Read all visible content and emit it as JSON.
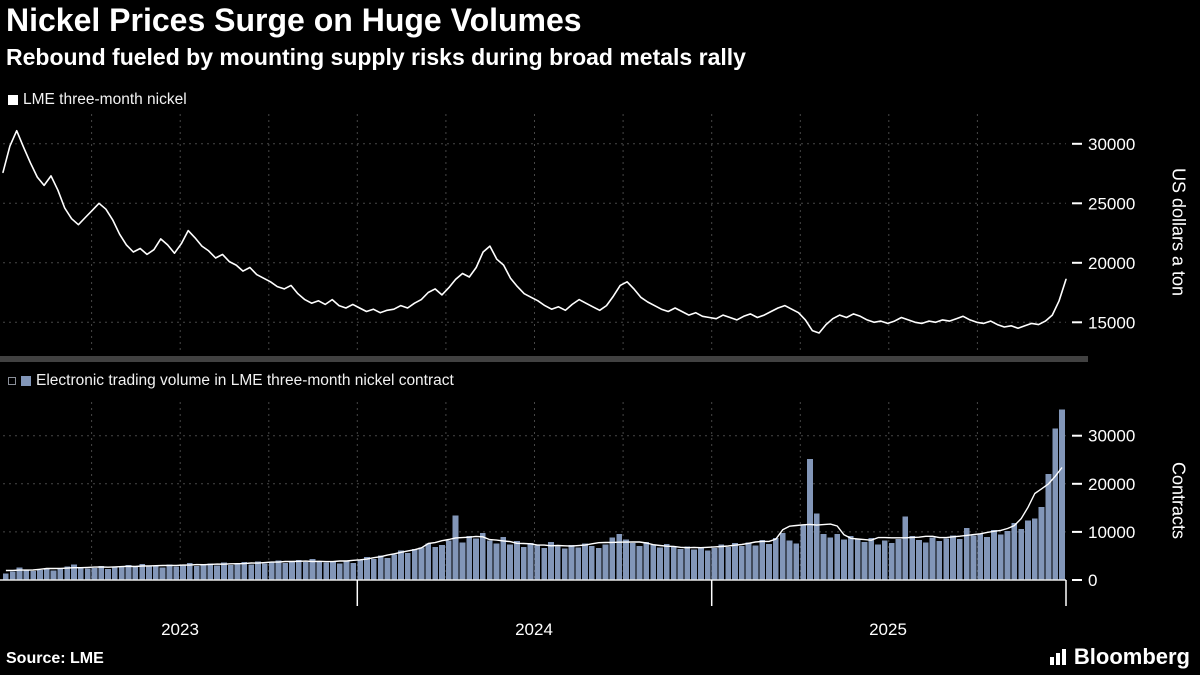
{
  "header": {
    "title": "Nickel Prices Surge on Huge Volumes",
    "subtitle": "Rebound fueled by mounting supply risks during broad metals rally"
  },
  "panels": {
    "price": {
      "legend": "LME three-month nickel",
      "axis_title": "US dollars a ton"
    },
    "volume": {
      "legend": "Electronic trading volume in LME three-month nickel contract",
      "axis_title": "Contracts"
    }
  },
  "x_axis": {
    "year_labels": [
      "2023",
      "2024",
      "2025"
    ]
  },
  "footer": {
    "source": "Source: LME",
    "brand": "Bloomberg"
  },
  "colors": {
    "background": "#000000",
    "price_line": "#ffffff",
    "volume_bar": "#8296b8",
    "volume_avg_line": "#ffffff",
    "grid": "#474747",
    "axis": "#e8e8e8",
    "separator": "#414141",
    "text": "#ffffff"
  },
  "chart_data": [
    {
      "type": "line",
      "title": "LME three-month nickel",
      "ylabel": "US dollars a ton",
      "frequency": "weekly",
      "x_range": [
        2023.0,
        2026.0
      ],
      "xticks": [
        "2023",
        "2024",
        "2025"
      ],
      "ylim": [
        12500,
        32500
      ],
      "yticks": [
        15000,
        20000,
        25000,
        30000
      ],
      "grid": "dashed",
      "legend_position": "top-left",
      "values": [
        27600,
        29800,
        31100,
        29700,
        28400,
        27200,
        26500,
        27300,
        26100,
        24600,
        23700,
        23200,
        23800,
        24400,
        25000,
        24500,
        23600,
        22400,
        21500,
        20900,
        21200,
        20700,
        21100,
        22000,
        21500,
        20800,
        21600,
        22700,
        22100,
        21400,
        21000,
        20400,
        20700,
        20100,
        19800,
        19300,
        19600,
        19000,
        18700,
        18400,
        18000,
        17800,
        18100,
        17400,
        16900,
        16600,
        16800,
        16500,
        16900,
        16400,
        16200,
        16500,
        16200,
        15900,
        16100,
        15800,
        16000,
        16100,
        16400,
        16200,
        16600,
        16900,
        17500,
        17800,
        17300,
        17900,
        18600,
        19100,
        18800,
        19600,
        20900,
        21400,
        20300,
        19800,
        18700,
        18000,
        17400,
        17100,
        16800,
        16400,
        16100,
        16300,
        16000,
        16500,
        16900,
        16600,
        16300,
        16000,
        16400,
        17200,
        18100,
        18400,
        17800,
        17100,
        16700,
        16400,
        16100,
        15900,
        16200,
        15900,
        15600,
        15800,
        15500,
        15400,
        15300,
        15600,
        15400,
        15200,
        15500,
        15700,
        15400,
        15600,
        15900,
        16200,
        16400,
        16100,
        15800,
        15200,
        14300,
        14100,
        14800,
        15300,
        15600,
        15400,
        15700,
        15500,
        15200,
        15000,
        15100,
        14900,
        15100,
        15400,
        15200,
        15000,
        14900,
        15100,
        15000,
        15200,
        15100,
        15300,
        15500,
        15200,
        15000,
        14900,
        15100,
        14800,
        14600,
        14700,
        14500,
        14700,
        14900,
        14800,
        15100,
        15600,
        16800,
        18600
      ]
    },
    {
      "type": "bar",
      "title": "Electronic trading volume in LME three-month nickel contract",
      "ylabel": "Contracts",
      "frequency": "weekly",
      "x_range": [
        2023.0,
        2026.0
      ],
      "xticks": [
        "2023",
        "2024",
        "2025"
      ],
      "ylim": [
        0,
        37000
      ],
      "yticks": [
        0,
        10000,
        20000,
        30000
      ],
      "grid": "dashed",
      "overlay": "moving_average_line",
      "legend_position": "top-left",
      "values": [
        1400,
        1800,
        2600,
        2200,
        1900,
        2100,
        2400,
        2000,
        2300,
        2800,
        3200,
        2600,
        2400,
        2500,
        2900,
        2300,
        2600,
        2800,
        3100,
        2700,
        3300,
        2900,
        3000,
        2600,
        3200,
        2800,
        3100,
        3500,
        2900,
        3300,
        3400,
        3000,
        3600,
        3100,
        3300,
        3700,
        3200,
        3800,
        3400,
        3600,
        4100,
        3500,
        3900,
        4200,
        3700,
        4400,
        3900,
        3600,
        4000,
        3400,
        3800,
        3500,
        4200,
        4800,
        4400,
        5100,
        4600,
        5300,
        6100,
        5600,
        6400,
        6800,
        7600,
        6900,
        7300,
        8200,
        13400,
        7800,
        9100,
        8600,
        9800,
        8200,
        7600,
        8900,
        7400,
        8100,
        6900,
        7700,
        7200,
        6600,
        7900,
        7000,
        6500,
        7300,
        6800,
        7600,
        7100,
        6700,
        7400,
        8800,
        9600,
        8400,
        7700,
        7100,
        7900,
        7300,
        6800,
        7500,
        6900,
        6400,
        7000,
        6300,
        6800,
        6100,
        6600,
        7400,
        6900,
        7700,
        7100,
        7800,
        7200,
        8300,
        7500,
        8700,
        9800,
        8200,
        7600,
        11500,
        25200,
        13800,
        9600,
        8800,
        9600,
        8400,
        9100,
        8600,
        7900,
        8700,
        7400,
        8200,
        7700,
        8500,
        13200,
        9100,
        8300,
        7800,
        8800,
        8100,
        8600,
        9300,
        8500,
        10800,
        9200,
        9700,
        8900,
        10400,
        9500,
        10200,
        11800,
        10600,
        12400,
        12800,
        15200,
        22000,
        31500,
        35400
      ]
    }
  ]
}
